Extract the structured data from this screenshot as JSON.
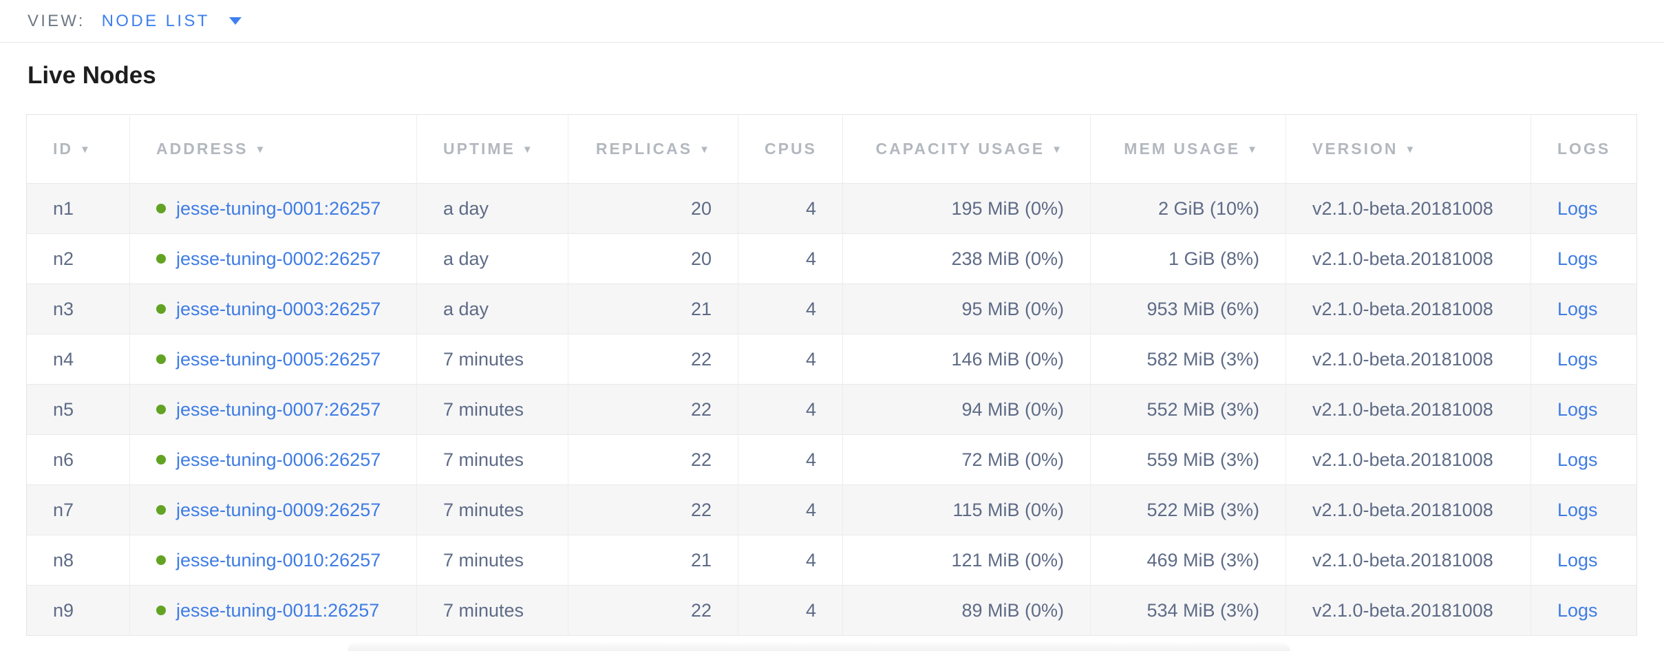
{
  "view_bar": {
    "label": "VIEW:",
    "selected": "NODE LIST"
  },
  "page": {
    "title": "Live Nodes"
  },
  "colors": {
    "topbar_blue": "#3f80ec",
    "link_blue": "#3e7ce4",
    "live_dot_green": "#62a323",
    "header_gray": "#b3b8bf",
    "cell_slate": "#5e6b86",
    "row_alt_bg": "#f6f6f7"
  },
  "table": {
    "sort_arrow": "▼",
    "columns": [
      {
        "key": "id",
        "label": "ID",
        "sortable": true,
        "align": "left"
      },
      {
        "key": "address",
        "label": "ADDRESS",
        "sortable": true,
        "align": "left"
      },
      {
        "key": "uptime",
        "label": "UPTIME",
        "sortable": true,
        "align": "left"
      },
      {
        "key": "replicas",
        "label": "REPLICAS",
        "sortable": true,
        "align": "right"
      },
      {
        "key": "cpus",
        "label": "CPUS",
        "sortable": false,
        "align": "right"
      },
      {
        "key": "capacity",
        "label": "CAPACITY USAGE",
        "sortable": true,
        "align": "right"
      },
      {
        "key": "mem",
        "label": "MEM USAGE",
        "sortable": true,
        "align": "right"
      },
      {
        "key": "version",
        "label": "VERSION",
        "sortable": true,
        "align": "left"
      },
      {
        "key": "logs",
        "label": "LOGS",
        "sortable": false,
        "align": "left"
      }
    ],
    "rows": [
      {
        "id": "n1",
        "address": "jesse-tuning-0001:26257",
        "uptime": "a day",
        "replicas": "20",
        "cpus": "4",
        "capacity": "195 MiB (0%)",
        "mem": "2 GiB (10%)",
        "version": "v2.1.0-beta.20181008",
        "logs": "Logs"
      },
      {
        "id": "n2",
        "address": "jesse-tuning-0002:26257",
        "uptime": "a day",
        "replicas": "20",
        "cpus": "4",
        "capacity": "238 MiB (0%)",
        "mem": "1 GiB (8%)",
        "version": "v2.1.0-beta.20181008",
        "logs": "Logs"
      },
      {
        "id": "n3",
        "address": "jesse-tuning-0003:26257",
        "uptime": "a day",
        "replicas": "21",
        "cpus": "4",
        "capacity": "95 MiB (0%)",
        "mem": "953 MiB (6%)",
        "version": "v2.1.0-beta.20181008",
        "logs": "Logs"
      },
      {
        "id": "n4",
        "address": "jesse-tuning-0005:26257",
        "uptime": "7 minutes",
        "replicas": "22",
        "cpus": "4",
        "capacity": "146 MiB (0%)",
        "mem": "582 MiB (3%)",
        "version": "v2.1.0-beta.20181008",
        "logs": "Logs"
      },
      {
        "id": "n5",
        "address": "jesse-tuning-0007:26257",
        "uptime": "7 minutes",
        "replicas": "22",
        "cpus": "4",
        "capacity": "94 MiB (0%)",
        "mem": "552 MiB (3%)",
        "version": "v2.1.0-beta.20181008",
        "logs": "Logs"
      },
      {
        "id": "n6",
        "address": "jesse-tuning-0006:26257",
        "uptime": "7 minutes",
        "replicas": "22",
        "cpus": "4",
        "capacity": "72 MiB (0%)",
        "mem": "559 MiB (3%)",
        "version": "v2.1.0-beta.20181008",
        "logs": "Logs"
      },
      {
        "id": "n7",
        "address": "jesse-tuning-0009:26257",
        "uptime": "7 minutes",
        "replicas": "22",
        "cpus": "4",
        "capacity": "115 MiB (0%)",
        "mem": "522 MiB (3%)",
        "version": "v2.1.0-beta.20181008",
        "logs": "Logs"
      },
      {
        "id": "n8",
        "address": "jesse-tuning-0010:26257",
        "uptime": "7 minutes",
        "replicas": "21",
        "cpus": "4",
        "capacity": "121 MiB (0%)",
        "mem": "469 MiB (3%)",
        "version": "v2.1.0-beta.20181008",
        "logs": "Logs"
      },
      {
        "id": "n9",
        "address": "jesse-tuning-0011:26257",
        "uptime": "7 minutes",
        "replicas": "22",
        "cpus": "4",
        "capacity": "89 MiB (0%)",
        "mem": "534 MiB (3%)",
        "version": "v2.1.0-beta.20181008",
        "logs": "Logs"
      }
    ]
  }
}
